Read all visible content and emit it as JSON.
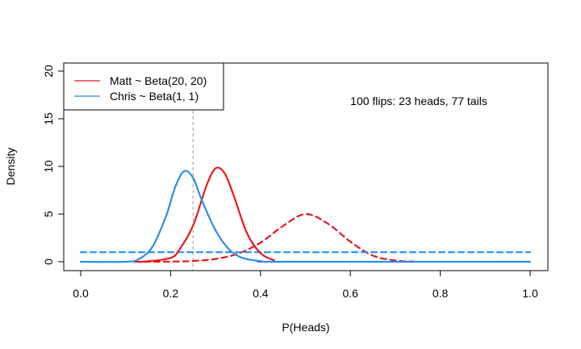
{
  "chart_data": {
    "type": "line",
    "title": "",
    "xlabel": "P(Heads)",
    "ylabel": "Density",
    "xlim": [
      0,
      1
    ],
    "ylim": [
      0,
      20
    ],
    "x_ticks": [
      "0.0",
      "0.2",
      "0.4",
      "0.6",
      "0.8",
      "1.0"
    ],
    "y_ticks": [
      "0",
      "5",
      "10",
      "15",
      "20"
    ],
    "annotation": "100 flips: 23 heads, 77 tails",
    "vline_x": 0.25,
    "legend_position": "top-left",
    "series": [
      {
        "name": "Matt ~ Beta(20, 20)",
        "style": "dashed",
        "color": "#e31a1c",
        "x": [
          0.12,
          0.15,
          0.2,
          0.25,
          0.3,
          0.35,
          0.4,
          0.45,
          0.5,
          0.55,
          0.6,
          0.65,
          0.7,
          0.74
        ],
        "y": [
          0.0,
          0.0,
          0.02,
          0.08,
          0.3,
          0.85,
          2.0,
          3.75,
          5.0,
          4.0,
          2.1,
          0.65,
          0.13,
          0.02
        ]
      },
      {
        "name": "Chris ~ Beta(1, 1)",
        "style": "dashed",
        "color": "#2a8ee6",
        "x": [
          0.0,
          1.0
        ],
        "y": [
          1.0,
          1.0
        ]
      },
      {
        "name": "",
        "style": "solid",
        "color": "#e31a1c",
        "x": [
          0.12,
          0.15,
          0.2,
          0.22,
          0.25,
          0.28,
          0.3,
          0.32,
          0.34,
          0.37,
          0.4,
          0.43
        ],
        "y": [
          0.0,
          0.05,
          0.4,
          1.3,
          3.8,
          8.0,
          9.8,
          9.3,
          7.0,
          3.0,
          0.9,
          0.15
        ]
      },
      {
        "name": "",
        "style": "solid",
        "color": "#2a8ee6",
        "x": [
          0.0,
          0.1,
          0.13,
          0.16,
          0.19,
          0.21,
          0.23,
          0.25,
          0.27,
          0.3,
          0.33,
          0.36,
          0.4,
          0.45,
          1.0
        ],
        "y": [
          0.0,
          0.0,
          0.3,
          1.6,
          4.8,
          7.8,
          9.5,
          8.8,
          6.4,
          3.3,
          1.3,
          0.4,
          0.08,
          0.0,
          0.0
        ]
      }
    ]
  },
  "colors": {
    "red": "#e31a1c",
    "blue": "#2a8ee6",
    "vline": "#9a9a9a",
    "axis": "#000000"
  }
}
